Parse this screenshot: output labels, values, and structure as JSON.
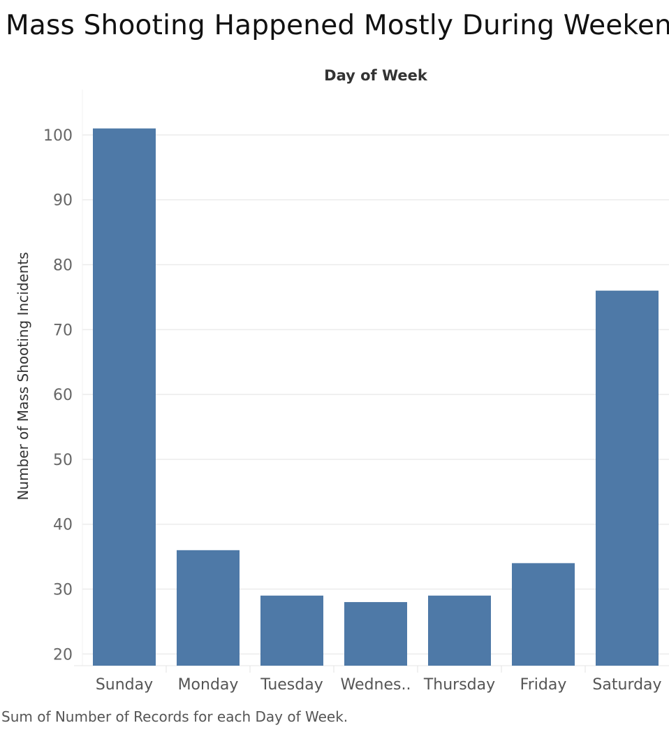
{
  "chart_title": "Mass Shooting Happened Mostly During Weekend",
  "footer_caption": "Sum of Number of Records for each Day of Week.",
  "chart_data": {
    "type": "bar",
    "title": "Mass Shooting Happened Mostly During Weekend",
    "column_header": "Day of Week",
    "xlabel": "",
    "ylabel": "Number of Mass Shooting Incidents",
    "categories": [
      "Sunday",
      "Monday",
      "Tuesday",
      "Wednes..",
      "Thursday",
      "Friday",
      "Saturday"
    ],
    "values": [
      101,
      36,
      29,
      28,
      29,
      34,
      76
    ],
    "ylim": [
      18.2,
      107
    ],
    "yticks": [
      20,
      30,
      40,
      50,
      60,
      70,
      80,
      90,
      100
    ],
    "grid": true,
    "bar_color": "#4e79a7"
  }
}
